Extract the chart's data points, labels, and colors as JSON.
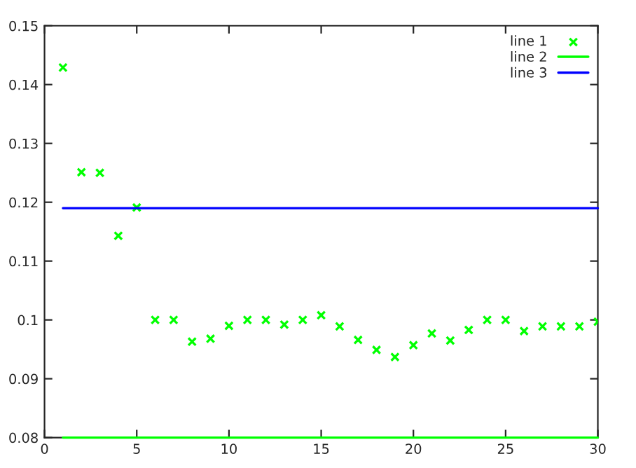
{
  "chart_data": {
    "type": "scatter",
    "legend": "top right",
    "grid": false,
    "xlim": [
      0,
      30
    ],
    "xticks": [
      0,
      5,
      10,
      15,
      20,
      25,
      30
    ],
    "ylim": [
      0.08,
      0.15
    ],
    "yticks": [
      0.08,
      0.09,
      0.1,
      0.11,
      0.12,
      0.13,
      0.14,
      0.15
    ],
    "series": [
      {
        "name": "line 1",
        "marker": "cross",
        "color": "#00ff00",
        "x": [
          1,
          2,
          3,
          4,
          5,
          6,
          7,
          8,
          9,
          10,
          11,
          12,
          13,
          14,
          15,
          16,
          17,
          18,
          19,
          20,
          21,
          22,
          23,
          24,
          25,
          26,
          27,
          28,
          29,
          30
        ],
        "values": [
          0.1429,
          0.1251,
          0.125,
          0.1143,
          0.1191,
          0.1,
          0.1,
          0.0963,
          0.0968,
          0.099,
          0.1,
          0.1,
          0.0992,
          0.1,
          0.1008,
          0.0989,
          0.0966,
          0.0949,
          0.0937,
          0.0957,
          0.0977,
          0.0965,
          0.0983,
          0.1,
          0.1,
          0.0981,
          0.0989,
          0.0989,
          0.0989,
          0.0997
        ]
      },
      {
        "name": "line 2",
        "type": "line",
        "color": "#00ff00",
        "x": [
          1,
          30
        ],
        "values": [
          0.08,
          0.08
        ]
      },
      {
        "name": "line 3",
        "type": "line",
        "color": "#0000ff",
        "x": [
          1,
          30
        ],
        "values": [
          0.119,
          0.119
        ]
      }
    ]
  }
}
